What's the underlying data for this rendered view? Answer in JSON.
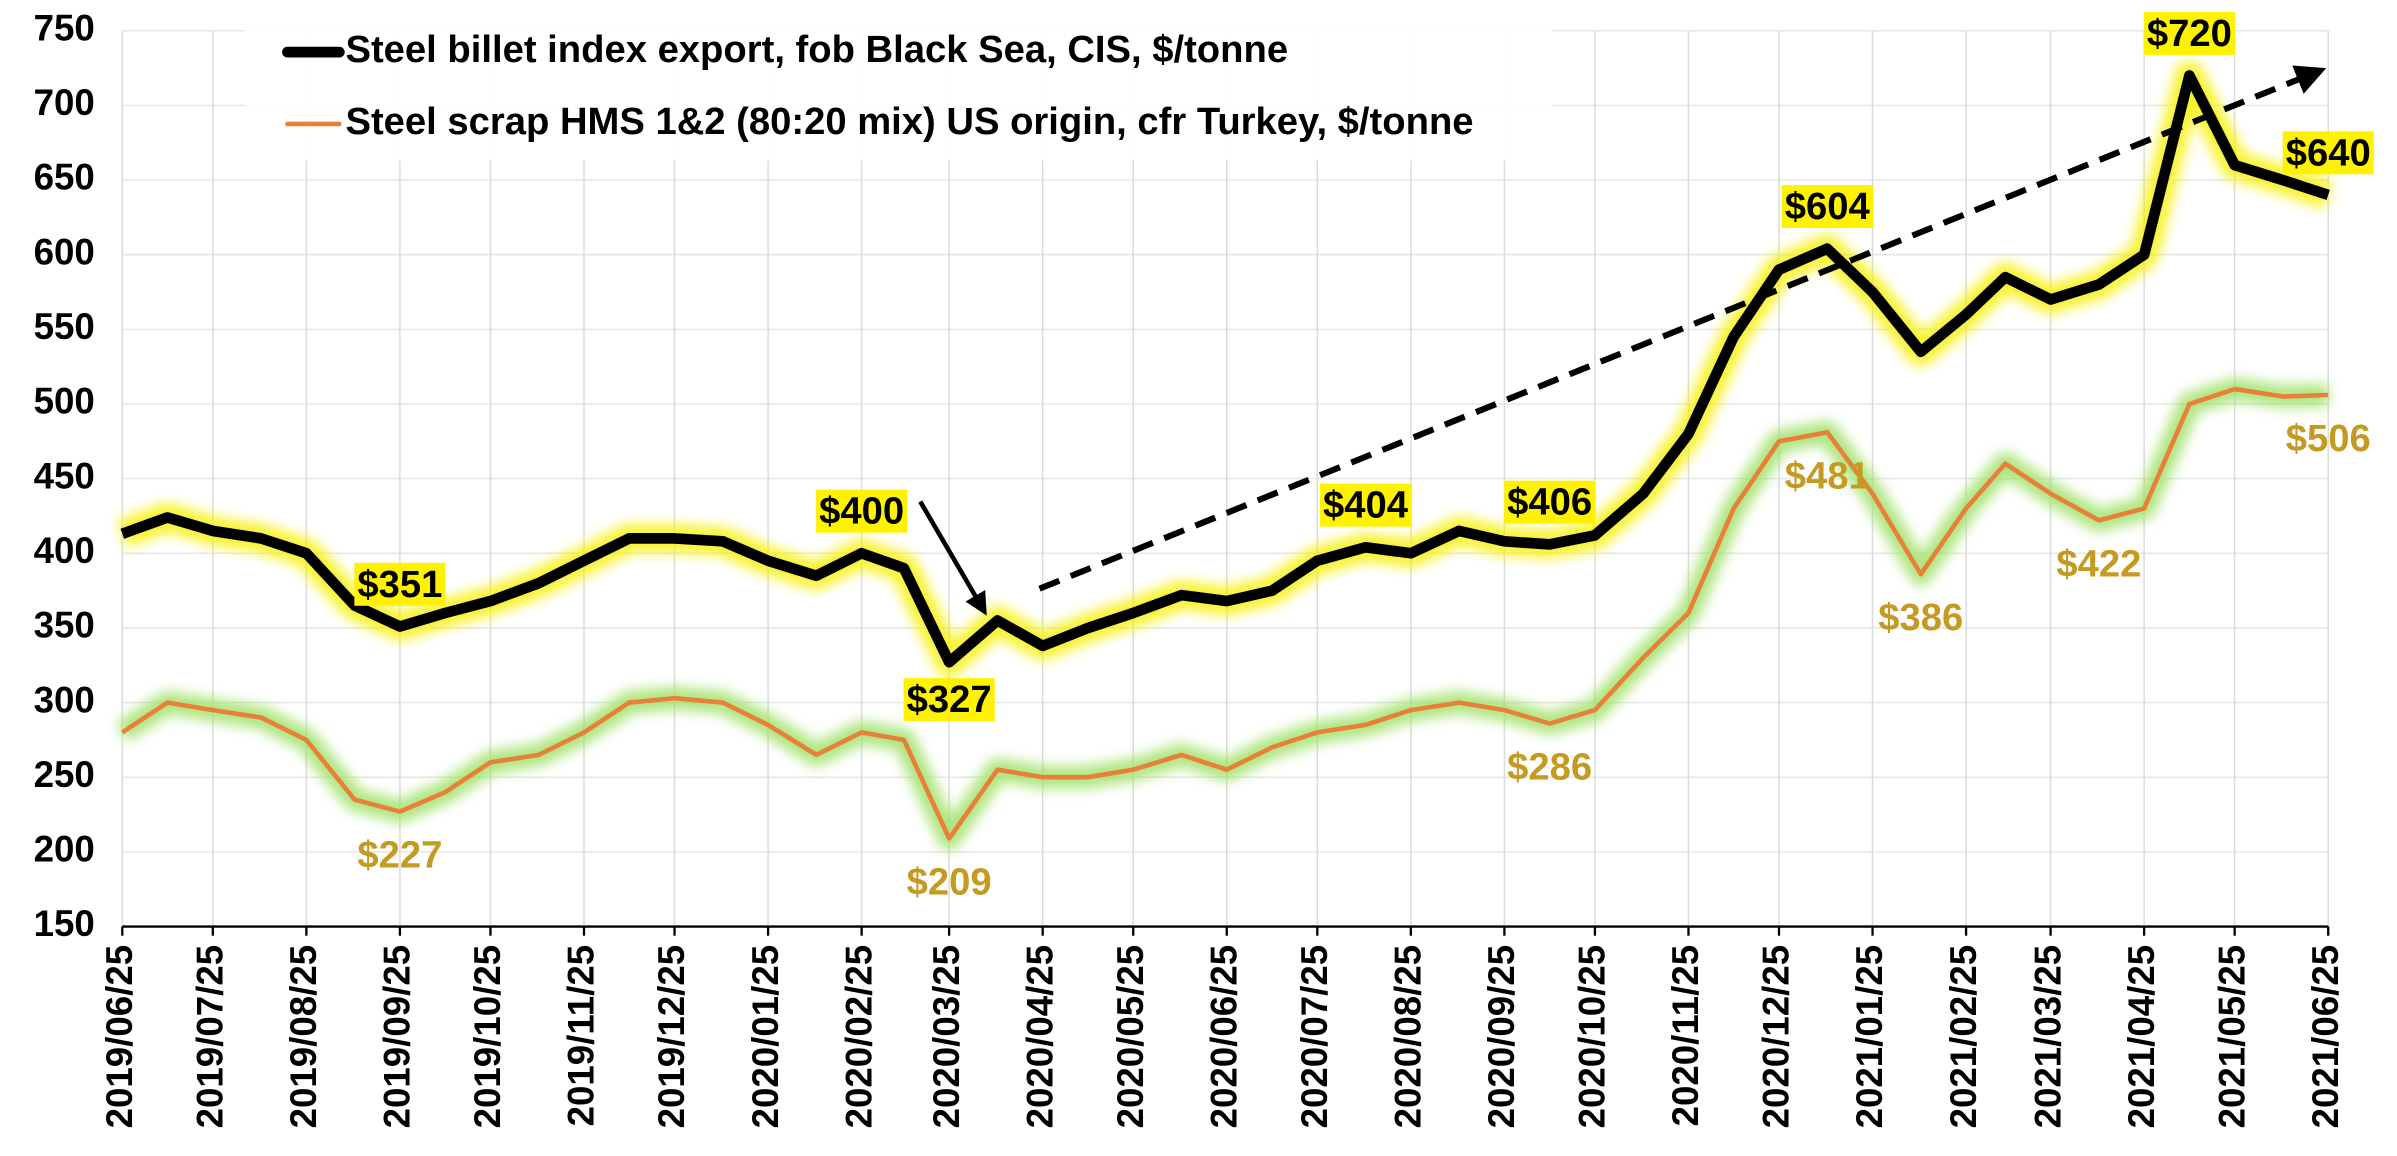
{
  "chart_data": {
    "type": "line",
    "legend": "top-left",
    "grid": true,
    "ylim": [
      150,
      750
    ],
    "yticks": [
      150,
      200,
      250,
      300,
      350,
      400,
      450,
      500,
      550,
      600,
      650,
      700,
      750
    ],
    "xlim": [
      "2019/06/25",
      "2021/06/25"
    ],
    "xticks": [
      "2019/06/25",
      "2019/07/25",
      "2019/08/25",
      "2019/09/25",
      "2019/10/25",
      "2019/11/25",
      "2019/12/25",
      "2020/01/25",
      "2020/02/25",
      "2020/03/25",
      "2020/04/25",
      "2020/05/25",
      "2020/06/25",
      "2020/07/25",
      "2020/08/25",
      "2020/09/25",
      "2020/10/25",
      "2020/11/25",
      "2020/12/25",
      "2021/01/25",
      "2021/02/25",
      "2021/03/25",
      "2021/04/25",
      "2021/05/25",
      "2021/06/25"
    ],
    "x": [
      "2019/06/25",
      "2019/07/10",
      "2019/07/25",
      "2019/08/10",
      "2019/08/25",
      "2019/09/10",
      "2019/09/25",
      "2019/10/10",
      "2019/10/25",
      "2019/11/10",
      "2019/11/25",
      "2019/12/10",
      "2019/12/25",
      "2020/01/10",
      "2020/01/25",
      "2020/02/10",
      "2020/02/25",
      "2020/03/10",
      "2020/03/25",
      "2020/04/10",
      "2020/04/25",
      "2020/05/10",
      "2020/05/25",
      "2020/06/10",
      "2020/06/25",
      "2020/07/10",
      "2020/07/25",
      "2020/08/10",
      "2020/08/25",
      "2020/09/10",
      "2020/09/25",
      "2020/10/10",
      "2020/10/25",
      "2020/11/10",
      "2020/11/25",
      "2020/12/10",
      "2020/12/25",
      "2021/01/10",
      "2021/01/25",
      "2021/02/10",
      "2021/02/25",
      "2021/03/10",
      "2021/03/25",
      "2021/04/10",
      "2021/04/25",
      "2021/05/10",
      "2021/05/25",
      "2021/06/10",
      "2021/06/25"
    ],
    "series": [
      {
        "name": "Steel billet index export, fob Black Sea, CIS, $/tonne",
        "color": "#000000",
        "glow": "#f6f000",
        "values": [
          413,
          424,
          415,
          410,
          400,
          365,
          351,
          360,
          368,
          380,
          395,
          410,
          410,
          408,
          395,
          385,
          400,
          390,
          327,
          355,
          338,
          350,
          360,
          372,
          368,
          375,
          395,
          404,
          400,
          415,
          408,
          406,
          412,
          440,
          480,
          545,
          590,
          604,
          575,
          535,
          560,
          585,
          570,
          580,
          600,
          720,
          660,
          650,
          640
        ],
        "value_labels": [
          null,
          null,
          null,
          null,
          null,
          null,
          "$351",
          null,
          null,
          null,
          null,
          null,
          null,
          null,
          null,
          null,
          "$400",
          null,
          "$327",
          null,
          null,
          null,
          null,
          null,
          null,
          null,
          null,
          "$404",
          null,
          null,
          null,
          "$406",
          null,
          null,
          null,
          null,
          null,
          "$604",
          null,
          null,
          null,
          null,
          null,
          null,
          null,
          "$720",
          null,
          null,
          "$640"
        ]
      },
      {
        "name": "Steel scrap HMS 1&2 (80:20 mix) US origin, cfr Turkey, $/tonne",
        "color": "#e8803a",
        "glow": "#9be060",
        "values": [
          280,
          300,
          295,
          290,
          275,
          235,
          227,
          240,
          260,
          265,
          280,
          300,
          303,
          300,
          285,
          265,
          280,
          275,
          209,
          255,
          250,
          250,
          255,
          265,
          255,
          270,
          280,
          285,
          295,
          300,
          295,
          286,
          295,
          330,
          360,
          430,
          475,
          481,
          440,
          386,
          430,
          460,
          440,
          422,
          430,
          500,
          510,
          505,
          506
        ],
        "value_labels": [
          null,
          null,
          null,
          null,
          null,
          null,
          "$227",
          null,
          null,
          null,
          null,
          null,
          null,
          null,
          null,
          null,
          null,
          null,
          "$209",
          null,
          null,
          null,
          null,
          null,
          null,
          null,
          null,
          null,
          null,
          null,
          null,
          "$286",
          null,
          null,
          null,
          null,
          null,
          "$481",
          null,
          "$386",
          null,
          null,
          null,
          "$422",
          null,
          null,
          null,
          null,
          "$506"
        ]
      }
    ]
  }
}
